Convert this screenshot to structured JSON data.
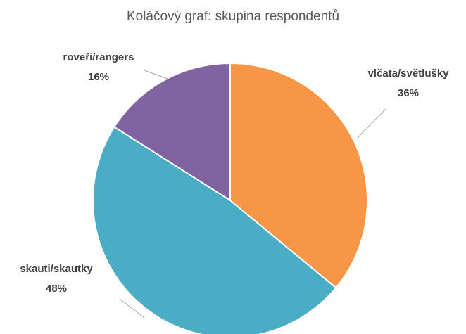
{
  "chart_data": {
    "type": "pie",
    "title": "Koláčový graf: skupina respondentů",
    "categories": [
      "vlčata/světlušky",
      "skauti/skautky",
      "roveři/rangers"
    ],
    "values": [
      36,
      48,
      16
    ],
    "value_labels": [
      "36%",
      "48%",
      "16%"
    ],
    "colors": [
      "#F79646",
      "#4BACC6",
      "#8064A2"
    ]
  }
}
